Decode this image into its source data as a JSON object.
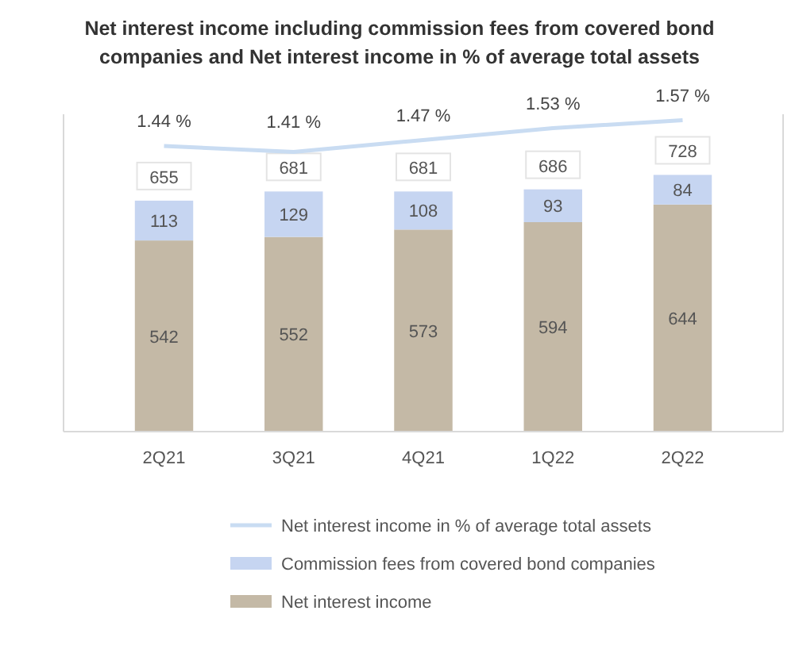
{
  "chart_data": {
    "type": "bar",
    "title": "Net interest income including commission fees from covered bond companies and Net interest income in % of average total assets",
    "categories": [
      "2Q21",
      "3Q21",
      "4Q21",
      "1Q22",
      "2Q22"
    ],
    "stacked": true,
    "data_labels": true,
    "ylim": [
      0,
      900
    ],
    "y2lim": [
      0,
      1.6
    ],
    "tick_labels": "x",
    "legend": "bottom",
    "series": [
      {
        "name": "Net interest income",
        "color": "#c4b9a6",
        "values": [
          542,
          552,
          573,
          594,
          644
        ]
      },
      {
        "name": "Commission fees from covered bond companies",
        "color": "#c6d5f1",
        "values": [
          113,
          129,
          108,
          93,
          84
        ]
      },
      {
        "name": "Net interest income in % of average total assets",
        "type": "line",
        "axis": "y2",
        "color": "#c9dcf2",
        "values": [
          1.44,
          1.41,
          1.47,
          1.53,
          1.57
        ],
        "value_labels": [
          "1.44 %",
          "1.41 %",
          "1.47 %",
          "1.53 %",
          "1.57 %"
        ]
      }
    ],
    "totals": [
      "655",
      "681",
      "681",
      "686",
      "728"
    ]
  }
}
